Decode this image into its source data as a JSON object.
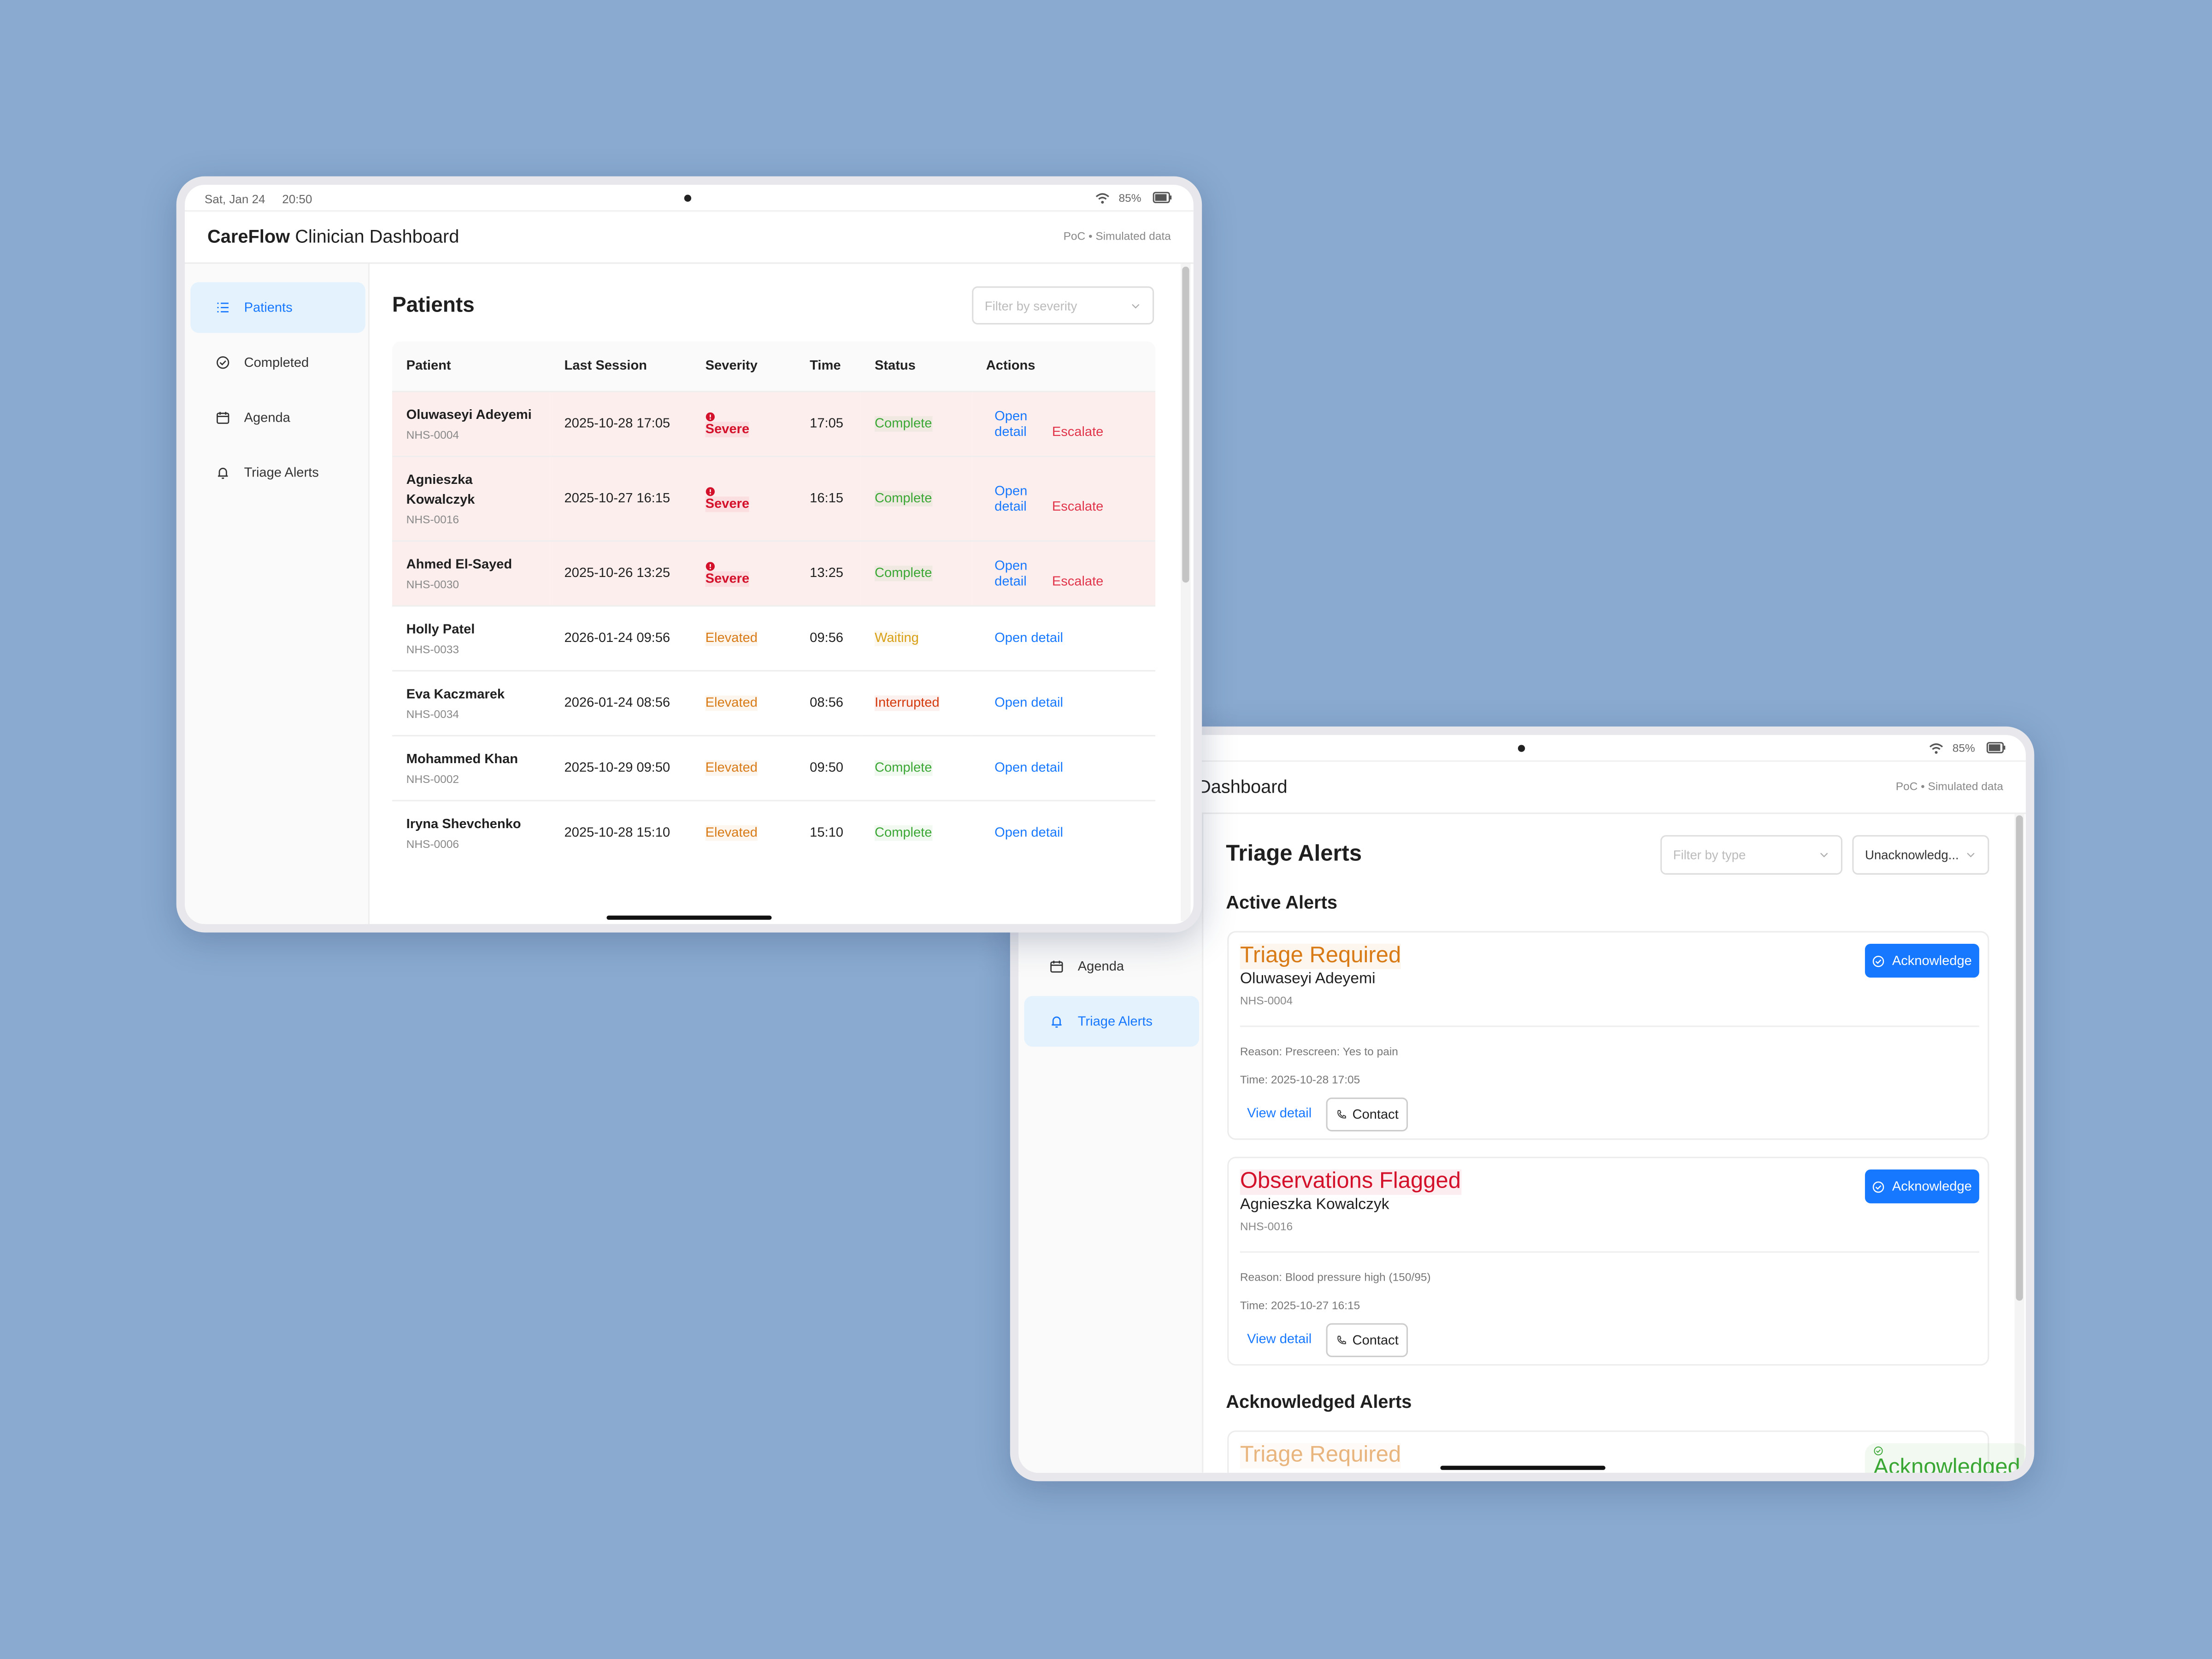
{
  "tablet_1": {
    "status_bar": {
      "date": "Sat, Jan 24",
      "time": "20:50",
      "battery": "85%"
    },
    "header": {
      "brand": "CareFlow",
      "title": "Clinician Dashboard",
      "note": "PoC • Simulated data"
    },
    "nav": [
      "Patients",
      "Completed",
      "Agenda",
      "Triage Alerts"
    ],
    "page": {
      "title": "Patients",
      "filter": "Filter by severity"
    },
    "table": {
      "columns": [
        "Patient",
        "Last Session",
        "Severity",
        "Time",
        "Status",
        "Actions"
      ],
      "rows": [
        {
          "name": "Oluwaseyi Adeyemi",
          "id": "NHS-0004",
          "last_session": "2025-10-28 17:05",
          "severity": "Severe",
          "severity_color": "#d4112b",
          "time": "17:05",
          "status": "Complete",
          "status_color": "#3aa634",
          "actions": [
            "Open detail",
            "Escalate"
          ],
          "row_color": "#fdeeee"
        },
        {
          "name": "Agnieszka Kowalczyk",
          "id": "NHS-0016",
          "last_session": "2025-10-27 16:15",
          "severity": "Severe",
          "severity_color": "#d4112b",
          "time": "16:15",
          "status": "Complete",
          "status_color": "#3aa634",
          "actions": [
            "Open detail",
            "Escalate"
          ],
          "row_color": "#fdeeee"
        },
        {
          "name": "Ahmed El-Sayed",
          "id": "NHS-0030",
          "last_session": "2025-10-26 13:25",
          "severity": "Severe",
          "severity_color": "#d4112b",
          "time": "13:25",
          "status": "Complete",
          "status_color": "#3aa634",
          "actions": [
            "Open detail",
            "Escalate"
          ],
          "row_color": "#fdeeee"
        },
        {
          "name": "Holly Patel",
          "id": "NHS-0033",
          "last_session": "2026-01-24 09:56",
          "severity": "Elevated",
          "severity_color": "#d87a16",
          "time": "09:56",
          "status": "Waiting",
          "status_color": "#d8a016",
          "actions": [
            "Open detail"
          ]
        },
        {
          "name": "Eva Kaczmarek",
          "id": "NHS-0034",
          "last_session": "2026-01-24 08:56",
          "severity": "Elevated",
          "severity_color": "#d87a16",
          "time": "08:56",
          "status": "Interrupted",
          "status_color": "#d4380d",
          "actions": [
            "Open detail"
          ]
        },
        {
          "name": "Mohammed Khan",
          "id": "NHS-0002",
          "last_session": "2025-10-29 09:50",
          "severity": "Elevated",
          "severity_color": "#d87a16",
          "time": "09:50",
          "status": "Complete",
          "status_color": "#3aa634",
          "actions": [
            "Open detail"
          ]
        },
        {
          "name": "Iryna Shevchenko",
          "id": "NHS-0006",
          "last_session": "2025-10-28 15:10",
          "severity": "Elevated",
          "severity_color": "#d87a16",
          "time": "15:10",
          "status": "Complete",
          "status_color": "#3aa634",
          "actions": [
            "Open detail"
          ]
        }
      ]
    }
  },
  "tablet_2": {
    "status_bar": {
      "battery": "85%"
    },
    "header": {
      "title": "Dashboard",
      "note": "PoC • Simulated data"
    },
    "nav": [
      "Agenda",
      "Triage Alerts"
    ],
    "page": {
      "title": "Triage Alerts",
      "filters": [
        "Filter by type",
        "Unacknowledg..."
      ]
    },
    "sections": [
      {
        "title": "Active Alerts",
        "alerts": [
          {
            "tag": "Triage Required",
            "tag_color": "#d87a16",
            "name": "Oluwaseyi Adeyemi",
            "id": "NHS-0004",
            "reason": "Reason: Prescreen: Yes to pain",
            "time": "Time: 2025-10-28 17:05",
            "actions": [
              "View detail",
              "Contact"
            ],
            "button": "Acknowledge"
          },
          {
            "tag": "Observations Flagged",
            "tag_color": "#d4112b",
            "name": "Agnieszka Kowalczyk",
            "id": "NHS-0016",
            "reason": "Reason: Blood pressure high (150/95)",
            "time": "Time: 2025-10-27 16:15",
            "actions": [
              "View detail",
              "Contact"
            ],
            "button": "Acknowledge"
          }
        ]
      },
      {
        "title": "Acknowledged Alerts",
        "alerts": [
          {
            "tag": "Triage Required",
            "tag_color": "#d87a16",
            "status": "Acknowledged",
            "status_color": "#3aa634"
          }
        ]
      }
    ]
  }
}
